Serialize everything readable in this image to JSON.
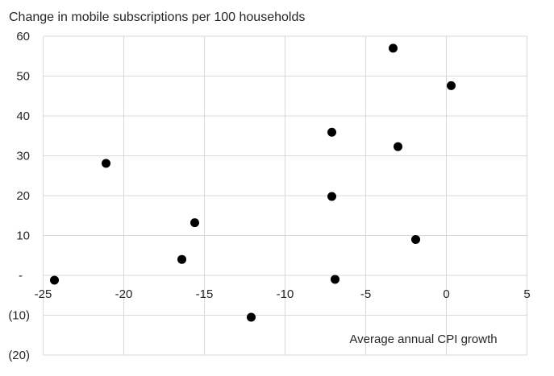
{
  "chart_data": {
    "type": "scatter",
    "title": "",
    "ylabel": "Change in mobile subscriptions per 100 households",
    "xlabel": "Average annual CPI growth",
    "xlim": [
      -25,
      5
    ],
    "ylim": [
      -20,
      60
    ],
    "x_ticks": [
      -25,
      -20,
      -15,
      -10,
      -5,
      0,
      5
    ],
    "x_tick_labels": [
      "-25",
      "-20",
      "-15",
      "-10",
      "-5",
      "0",
      "5"
    ],
    "y_ticks": [
      60,
      50,
      40,
      30,
      20,
      10,
      0,
      -10,
      -20
    ],
    "y_tick_labels": [
      "60",
      "50",
      "40",
      "30",
      "20",
      "10",
      "-",
      "(10)",
      "(20)"
    ],
    "grid": true,
    "legend": "none",
    "points": [
      [
        -24.3,
        -1.2
      ],
      [
        -21.1,
        28.1
      ],
      [
        -16.4,
        4.0
      ],
      [
        -15.6,
        13.2
      ],
      [
        -12.1,
        -10.5
      ],
      [
        -7.1,
        35.9
      ],
      [
        -7.1,
        19.8
      ],
      [
        -6.9,
        -1.0
      ],
      [
        -3.3,
        57.0
      ],
      [
        -3.0,
        32.3
      ],
      [
        -1.9,
        9.0
      ],
      [
        0.3,
        47.6
      ]
    ],
    "marker_color": "#000000",
    "gridline_color": "#d9d9d9",
    "text_color": "#262626",
    "background_color": "#ffffff"
  }
}
